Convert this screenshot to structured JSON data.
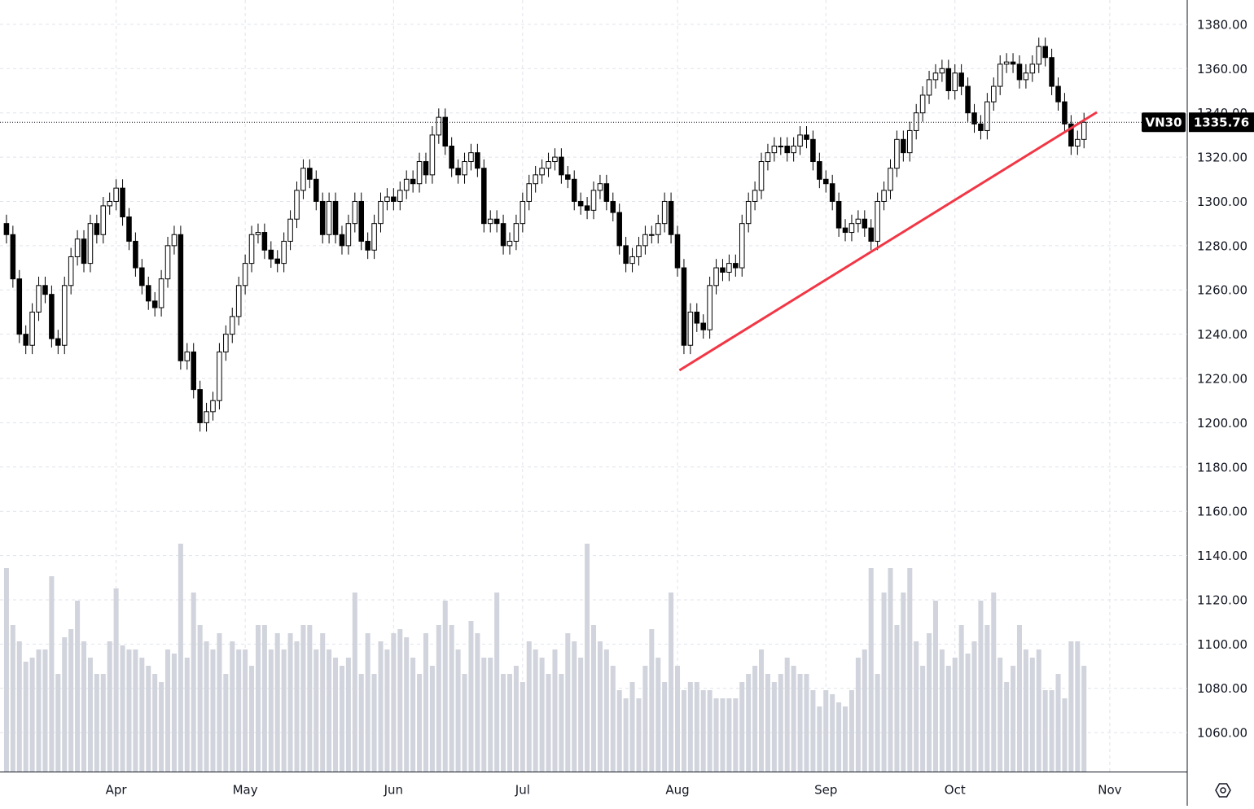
{
  "chart_data": {
    "type": "candlestick",
    "symbol": "VN30",
    "open": [
      1290,
      1285,
      1265,
      1240,
      1235,
      1250,
      1262,
      1258,
      1238,
      1235,
      1262,
      1275,
      1283,
      1272,
      1290,
      1285,
      1298,
      1300,
      1306,
      1293,
      1282,
      1270,
      1262,
      1255,
      1252,
      1265,
      1280,
      1285,
      1228,
      1232,
      1215,
      1200,
      1205,
      1210,
      1232,
      1240,
      1248,
      1262,
      1272,
      1285,
      1286,
      1278,
      1274,
      1272,
      1282,
      1292,
      1305,
      1315,
      1310,
      1300,
      1285,
      1300,
      1285,
      1280,
      1290,
      1300,
      1282,
      1278,
      1290,
      1300,
      1302,
      1300,
      1305,
      1310,
      1308,
      1318,
      1312,
      1330,
      1338,
      1325,
      1315,
      1312,
      1318,
      1322,
      1315,
      1290,
      1292,
      1290,
      1280,
      1282,
      1290,
      1300,
      1308,
      1312,
      1315,
      1318,
      1320,
      1312,
      1310,
      1300,
      1298,
      1296,
      1305,
      1308,
      1300,
      1295,
      1280,
      1272,
      1275,
      1280,
      1285,
      1285,
      1290,
      1300,
      1285,
      1270,
      1235,
      1250,
      1245,
      1242,
      1262,
      1270,
      1268,
      1272,
      1270,
      1290,
      1300,
      1305,
      1318,
      1322,
      1325,
      1325,
      1322,
      1325,
      1330,
      1328,
      1318,
      1310,
      1308,
      1300,
      1288,
      1286,
      1290,
      1292,
      1288,
      1282,
      1300,
      1305,
      1315,
      1328,
      1322,
      1332,
      1340,
      1348,
      1355,
      1358,
      1360,
      1350,
      1358,
      1352,
      1340,
      1335,
      1332,
      1345,
      1352,
      1362,
      1363,
      1362,
      1355,
      1358,
      1362,
      1370,
      1365,
      1352,
      1345,
      1335,
      1325,
      1328
    ],
    "high": [
      1294,
      1289,
      1269,
      1244,
      1254,
      1266,
      1266,
      1262,
      1242,
      1266,
      1279,
      1287,
      1287,
      1294,
      1294,
      1302,
      1304,
      1310,
      1310,
      1297,
      1286,
      1274,
      1266,
      1259,
      1269,
      1284,
      1289,
      1289,
      1236,
      1236,
      1219,
      1209,
      1214,
      1236,
      1244,
      1252,
      1266,
      1276,
      1289,
      1290,
      1290,
      1282,
      1278,
      1286,
      1296,
      1309,
      1319,
      1319,
      1314,
      1304,
      1304,
      1304,
      1289,
      1294,
      1304,
      1304,
      1286,
      1294,
      1304,
      1306,
      1306,
      1309,
      1314,
      1314,
      1322,
      1322,
      1334,
      1342,
      1342,
      1329,
      1319,
      1322,
      1326,
      1326,
      1319,
      1296,
      1296,
      1294,
      1286,
      1294,
      1304,
      1312,
      1316,
      1319,
      1322,
      1324,
      1324,
      1316,
      1314,
      1304,
      1302,
      1309,
      1312,
      1312,
      1304,
      1299,
      1284,
      1279,
      1284,
      1289,
      1289,
      1294,
      1304,
      1304,
      1289,
      1274,
      1254,
      1254,
      1249,
      1266,
      1274,
      1274,
      1276,
      1276,
      1294,
      1304,
      1309,
      1322,
      1326,
      1329,
      1329,
      1329,
      1329,
      1334,
      1334,
      1332,
      1322,
      1314,
      1312,
      1304,
      1292,
      1294,
      1296,
      1296,
      1292,
      1304,
      1309,
      1319,
      1332,
      1332,
      1336,
      1344,
      1352,
      1359,
      1362,
      1364,
      1364,
      1362,
      1362,
      1356,
      1344,
      1339,
      1349,
      1356,
      1366,
      1367,
      1367,
      1366,
      1362,
      1366,
      1374,
      1374,
      1369,
      1356,
      1349,
      1339,
      1332,
      1340
    ],
    "low": [
      1281,
      1261,
      1236,
      1231,
      1231,
      1246,
      1254,
      1234,
      1231,
      1231,
      1258,
      1271,
      1268,
      1268,
      1281,
      1281,
      1294,
      1296,
      1289,
      1278,
      1266,
      1258,
      1251,
      1248,
      1248,
      1261,
      1276,
      1224,
      1224,
      1211,
      1196,
      1196,
      1201,
      1206,
      1228,
      1236,
      1244,
      1258,
      1268,
      1281,
      1274,
      1270,
      1268,
      1268,
      1278,
      1288,
      1301,
      1306,
      1296,
      1281,
      1281,
      1281,
      1276,
      1276,
      1286,
      1278,
      1274,
      1274,
      1286,
      1296,
      1296,
      1296,
      1301,
      1304,
      1304,
      1308,
      1308,
      1326,
      1321,
      1311,
      1308,
      1308,
      1314,
      1311,
      1286,
      1286,
      1286,
      1276,
      1276,
      1278,
      1286,
      1296,
      1304,
      1308,
      1311,
      1314,
      1308,
      1306,
      1296,
      1294,
      1292,
      1292,
      1301,
      1296,
      1291,
      1276,
      1268,
      1268,
      1271,
      1276,
      1281,
      1281,
      1286,
      1281,
      1266,
      1231,
      1231,
      1241,
      1238,
      1238,
      1258,
      1264,
      1264,
      1266,
      1266,
      1286,
      1296,
      1301,
      1314,
      1318,
      1321,
      1318,
      1318,
      1321,
      1324,
      1314,
      1306,
      1304,
      1296,
      1284,
      1282,
      1282,
      1286,
      1284,
      1278,
      1278,
      1296,
      1301,
      1311,
      1318,
      1318,
      1328,
      1336,
      1344,
      1351,
      1354,
      1346,
      1346,
      1348,
      1336,
      1331,
      1328,
      1328,
      1341,
      1348,
      1358,
      1358,
      1351,
      1351,
      1354,
      1358,
      1361,
      1348,
      1341,
      1331,
      1321,
      1321,
      1324
    ],
    "close": [
      1285,
      1265,
      1240,
      1235,
      1250,
      1262,
      1258,
      1238,
      1235,
      1262,
      1275,
      1283,
      1272,
      1290,
      1285,
      1298,
      1300,
      1306,
      1293,
      1282,
      1270,
      1262,
      1255,
      1252,
      1265,
      1280,
      1285,
      1228,
      1232,
      1215,
      1200,
      1205,
      1210,
      1232,
      1240,
      1248,
      1262,
      1272,
      1285,
      1286,
      1278,
      1274,
      1272,
      1282,
      1292,
      1305,
      1315,
      1310,
      1300,
      1285,
      1300,
      1285,
      1280,
      1290,
      1300,
      1282,
      1278,
      1290,
      1300,
      1302,
      1300,
      1305,
      1310,
      1308,
      1318,
      1312,
      1330,
      1338,
      1325,
      1315,
      1312,
      1318,
      1322,
      1315,
      1290,
      1292,
      1290,
      1280,
      1282,
      1290,
      1300,
      1308,
      1312,
      1315,
      1318,
      1320,
      1312,
      1310,
      1300,
      1298,
      1296,
      1305,
      1308,
      1300,
      1295,
      1280,
      1272,
      1275,
      1280,
      1285,
      1285,
      1290,
      1300,
      1285,
      1270,
      1235,
      1250,
      1245,
      1242,
      1262,
      1270,
      1268,
      1272,
      1270,
      1290,
      1300,
      1305,
      1318,
      1322,
      1325,
      1325,
      1322,
      1325,
      1330,
      1328,
      1318,
      1310,
      1308,
      1300,
      1288,
      1286,
      1290,
      1292,
      1288,
      1282,
      1300,
      1305,
      1315,
      1328,
      1322,
      1332,
      1340,
      1348,
      1355,
      1358,
      1360,
      1350,
      1358,
      1352,
      1340,
      1335,
      1332,
      1345,
      1352,
      1362,
      1363,
      1362,
      1355,
      1358,
      1362,
      1370,
      1365,
      1352,
      1345,
      1335,
      1325,
      1328,
      1335.76
    ],
    "volume": [
      250,
      180,
      160,
      135,
      140,
      150,
      150,
      240,
      120,
      165,
      175,
      210,
      160,
      140,
      120,
      120,
      160,
      225,
      155,
      150,
      150,
      140,
      130,
      120,
      110,
      150,
      145,
      280,
      140,
      220,
      180,
      160,
      150,
      170,
      120,
      160,
      150,
      150,
      130,
      180,
      180,
      150,
      170,
      150,
      170,
      160,
      180,
      180,
      150,
      170,
      150,
      140,
      130,
      140,
      220,
      120,
      170,
      120,
      160,
      150,
      170,
      175,
      165,
      140,
      120,
      170,
      130,
      180,
      210,
      180,
      150,
      120,
      185,
      170,
      140,
      140,
      220,
      120,
      120,
      130,
      110,
      160,
      150,
      140,
      120,
      150,
      120,
      170,
      160,
      140,
      280,
      180,
      160,
      150,
      130,
      100,
      90,
      110,
      90,
      130,
      175,
      140,
      110,
      220,
      130,
      100,
      110,
      110,
      100,
      100,
      90,
      90,
      90,
      90,
      110,
      120,
      130,
      150,
      120,
      110,
      120,
      140,
      130,
      120,
      120,
      100,
      80,
      100,
      95,
      85,
      80,
      100,
      140,
      150,
      250,
      120,
      220,
      250,
      180,
      220,
      250,
      160,
      130,
      170,
      210,
      150,
      130,
      140,
      180,
      145,
      160,
      210,
      180,
      220,
      140,
      110,
      130,
      180,
      150,
      140,
      150,
      100,
      100,
      120,
      90,
      160,
      160,
      130
    ],
    "up_color": "#ffffff",
    "down_color": "#000000",
    "volume_color": "#d1d4dc",
    "xlim": [
      -1,
      183
    ],
    "xticks": [
      {
        "value": 17,
        "label": "Apr"
      },
      {
        "value": 37,
        "label": "May"
      },
      {
        "value": 60,
        "label": "Jun"
      },
      {
        "value": 80,
        "label": "Jul"
      },
      {
        "value": 104,
        "label": "Aug"
      },
      {
        "value": 127,
        "label": "Sep"
      },
      {
        "value": 147,
        "label": "Oct"
      },
      {
        "value": 171,
        "label": "Nov"
      }
    ],
    "ylim": [
      1042.4,
      1391
    ],
    "yticks": [
      {
        "value": 1060,
        "label": "1060.00"
      },
      {
        "value": 1080,
        "label": "1080.00"
      },
      {
        "value": 1100,
        "label": "1100.00"
      },
      {
        "value": 1120,
        "label": "1120.00"
      },
      {
        "value": 1140,
        "label": "1140.00"
      },
      {
        "value": 1160,
        "label": "1160.00"
      },
      {
        "value": 1180,
        "label": "1180.00"
      },
      {
        "value": 1200,
        "label": "1200.00"
      },
      {
        "value": 1220,
        "label": "1220.00"
      },
      {
        "value": 1240,
        "label": "1240.00"
      },
      {
        "value": 1260,
        "label": "1260.00"
      },
      {
        "value": 1280,
        "label": "1280.00"
      },
      {
        "value": 1300,
        "label": "1300.00"
      },
      {
        "value": 1320,
        "label": "1320.00"
      },
      {
        "value": 1340,
        "label": "1340.00"
      },
      {
        "value": 1360,
        "label": "1360.00"
      },
      {
        "value": 1380,
        "label": "1380.00"
      }
    ],
    "grid": true,
    "trendline": {
      "color": "#f23645",
      "x": [
        104.3,
        169
      ],
      "y": [
        1223.7,
        1340.3
      ]
    }
  }
}
